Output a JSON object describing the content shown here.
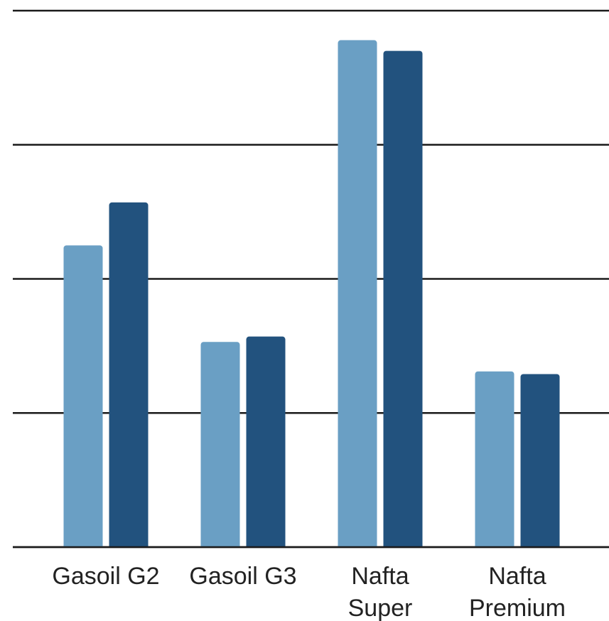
{
  "chart_data": {
    "type": "bar",
    "categories": [
      "Gasoil G2",
      "Gasoil G3",
      "Nafta Super",
      "Nafta Premium"
    ],
    "category_lines": [
      [
        "Gasoil G2"
      ],
      [
        "Gasoil G3"
      ],
      [
        "Nafta",
        "Super"
      ],
      [
        "Nafta",
        "Premium"
      ]
    ],
    "series": [
      {
        "values": [
          2.25,
          1.53,
          3.78,
          1.31
        ],
        "color": "#6a9fc4"
      },
      {
        "values": [
          2.57,
          1.57,
          3.7,
          1.29
        ],
        "color": "#22527e"
      }
    ],
    "ylim": [
      0,
      4
    ],
    "yticks": [
      0,
      1,
      2,
      3,
      4
    ],
    "grid": true,
    "legend": "none",
    "title": "",
    "xlabel": "",
    "ylabel": ""
  }
}
